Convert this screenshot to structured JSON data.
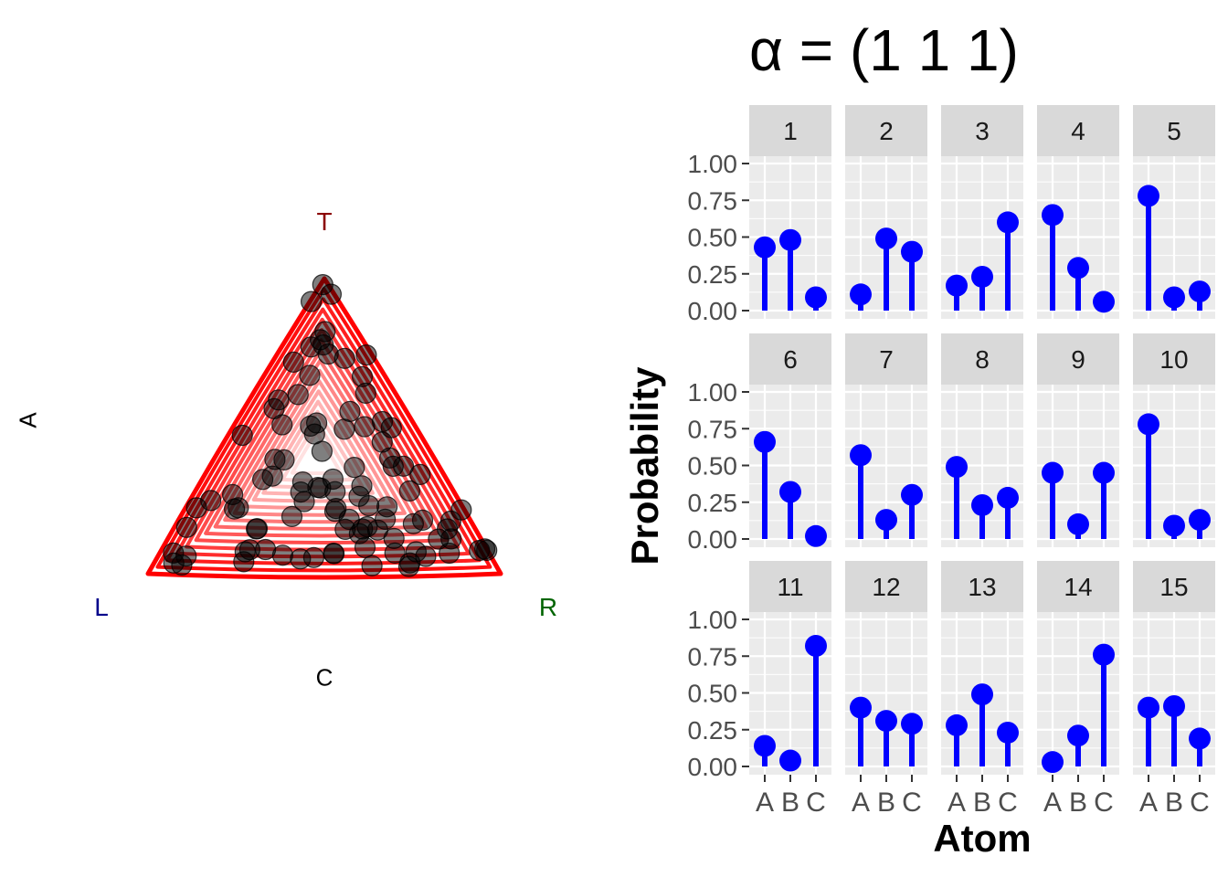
{
  "title": "α = (1 1 1)",
  "ternary": {
    "labels": {
      "top": {
        "text": "T",
        "color": "#8B0000"
      },
      "left": {
        "text": "L",
        "color": "#00008B"
      },
      "right": {
        "text": "R",
        "color": "#006400"
      },
      "left_side": "A",
      "bottom_side": "C"
    },
    "contour_color": "#FF0000",
    "point_color": "#000000"
  },
  "chart_data": {
    "type": "lollipop-facets",
    "ylabel": "Probability",
    "xlabel": "Atom",
    "categories": [
      "A",
      "B",
      "C"
    ],
    "ylim": [
      0,
      1
    ],
    "yticks": [
      "0.00",
      "0.25",
      "0.50",
      "0.75",
      "1.00"
    ],
    "color": "#0000FF",
    "panel_bg": "#EBEBEB",
    "strip_bg": "#D9D9D9",
    "facets": [
      {
        "label": "1",
        "values": [
          0.43,
          0.48,
          0.09
        ]
      },
      {
        "label": "2",
        "values": [
          0.11,
          0.49,
          0.4
        ]
      },
      {
        "label": "3",
        "values": [
          0.17,
          0.23,
          0.6
        ]
      },
      {
        "label": "4",
        "values": [
          0.65,
          0.29,
          0.06
        ]
      },
      {
        "label": "5",
        "values": [
          0.78,
          0.09,
          0.13
        ]
      },
      {
        "label": "6",
        "values": [
          0.66,
          0.32,
          0.02
        ]
      },
      {
        "label": "7",
        "values": [
          0.57,
          0.13,
          0.3
        ]
      },
      {
        "label": "8",
        "values": [
          0.49,
          0.23,
          0.28
        ]
      },
      {
        "label": "9",
        "values": [
          0.45,
          0.1,
          0.45
        ]
      },
      {
        "label": "10",
        "values": [
          0.78,
          0.09,
          0.13
        ]
      },
      {
        "label": "11",
        "values": [
          0.14,
          0.04,
          0.82
        ]
      },
      {
        "label": "12",
        "values": [
          0.4,
          0.31,
          0.29
        ]
      },
      {
        "label": "13",
        "values": [
          0.28,
          0.49,
          0.23
        ]
      },
      {
        "label": "14",
        "values": [
          0.03,
          0.21,
          0.76
        ]
      },
      {
        "label": "15",
        "values": [
          0.4,
          0.41,
          0.19
        ]
      }
    ]
  }
}
